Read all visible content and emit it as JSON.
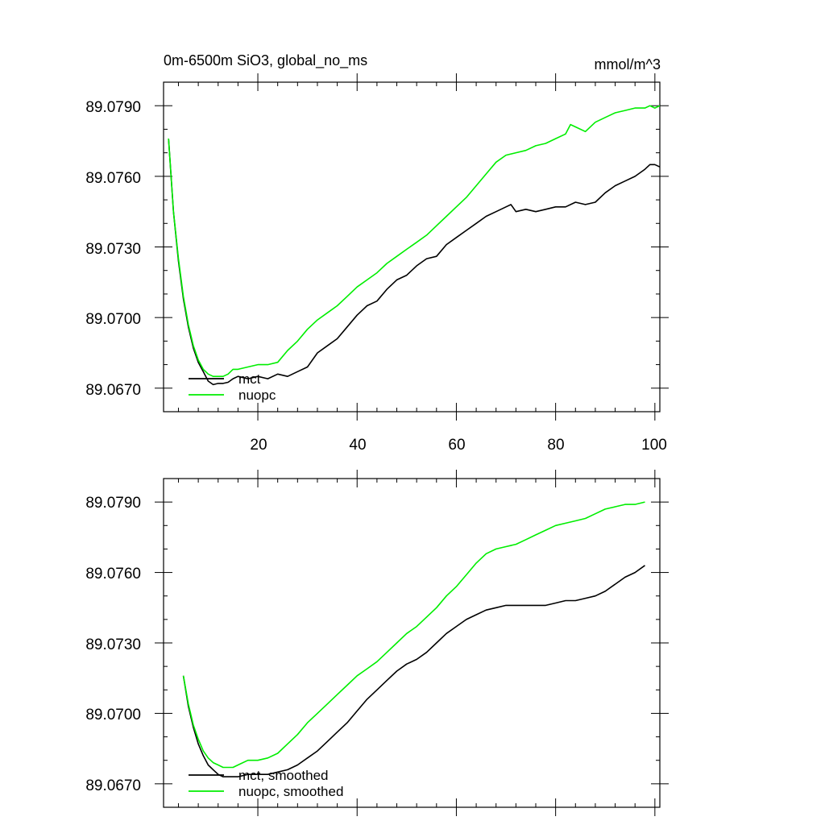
{
  "colors": {
    "mct": "#000000",
    "nuopc": "#00ee00",
    "frame": "#000000",
    "background": "#ffffff"
  },
  "chart_data": [
    {
      "type": "line",
      "title": "0m-6500m SiO3, global_no_ms",
      "units": "mmol/m^3",
      "xlim": [
        1,
        101
      ],
      "ylim": [
        89.066,
        89.08
      ],
      "x_ticks": [
        20,
        40,
        60,
        80,
        100
      ],
      "y_ticks": [
        89.067,
        89.07,
        89.073,
        89.076,
        89.079
      ],
      "x_tick_labels": [
        "20",
        "40",
        "60",
        "80",
        "100"
      ],
      "y_tick_labels": [
        "89.0670",
        "89.0700",
        "89.0730",
        "89.0760",
        "89.0790"
      ],
      "legend": [
        "mct",
        "nuopc"
      ],
      "legend_position": "bottom-left",
      "series": [
        {
          "name": "mct",
          "color": "#000000",
          "x": [
            2,
            3,
            4,
            5,
            6,
            7,
            8,
            9,
            10,
            11,
            12,
            13,
            14,
            15,
            16,
            18,
            20,
            22,
            24,
            26,
            28,
            30,
            32,
            34,
            36,
            38,
            40,
            42,
            44,
            46,
            48,
            50,
            52,
            54,
            56,
            58,
            60,
            62,
            64,
            66,
            68,
            70,
            71,
            72,
            74,
            76,
            78,
            80,
            82,
            84,
            86,
            88,
            90,
            92,
            94,
            96,
            98,
            99,
            100,
            101
          ],
          "values": [
            89.0776,
            89.0745,
            89.0724,
            89.0708,
            89.0696,
            89.0687,
            89.0681,
            89.0677,
            89.0673,
            89.06715,
            89.0672,
            89.0672,
            89.06725,
            89.0674,
            89.0675,
            89.0674,
            89.0675,
            89.0674,
            89.0676,
            89.0675,
            89.0677,
            89.0679,
            89.0685,
            89.0688,
            89.0691,
            89.0696,
            89.0701,
            89.0705,
            89.0707,
            89.0712,
            89.0716,
            89.0718,
            89.0722,
            89.0725,
            89.0726,
            89.0731,
            89.0734,
            89.0737,
            89.074,
            89.0743,
            89.0745,
            89.0747,
            89.0748,
            89.0745,
            89.0746,
            89.0745,
            89.0746,
            89.0747,
            89.0747,
            89.0749,
            89.0748,
            89.0749,
            89.0753,
            89.0756,
            89.0758,
            89.076,
            89.0763,
            89.0765,
            89.0765,
            89.0764
          ]
        },
        {
          "name": "nuopc",
          "color": "#00ee00",
          "x": [
            2,
            3,
            4,
            5,
            6,
            7,
            8,
            9,
            10,
            11,
            12,
            13,
            14,
            15,
            16,
            18,
            20,
            22,
            24,
            26,
            28,
            30,
            32,
            34,
            36,
            38,
            40,
            42,
            44,
            46,
            48,
            50,
            52,
            54,
            56,
            58,
            60,
            62,
            64,
            66,
            68,
            70,
            72,
            74,
            76,
            78,
            80,
            82,
            83,
            84,
            86,
            88,
            90,
            92,
            94,
            96,
            98,
            99,
            100,
            101
          ],
          "values": [
            89.0776,
            89.0745,
            89.0725,
            89.0709,
            89.0697,
            89.0688,
            89.0682,
            89.0678,
            89.0676,
            89.0675,
            89.0675,
            89.0675,
            89.0676,
            89.0678,
            89.0678,
            89.0679,
            89.068,
            89.068,
            89.0681,
            89.0686,
            89.069,
            89.0695,
            89.0699,
            89.0702,
            89.0705,
            89.0709,
            89.0713,
            89.0716,
            89.0719,
            89.0723,
            89.0726,
            89.0729,
            89.0732,
            89.0735,
            89.0739,
            89.0743,
            89.0747,
            89.0751,
            89.0756,
            89.0761,
            89.0766,
            89.0769,
            89.077,
            89.0771,
            89.0773,
            89.0774,
            89.0776,
            89.0778,
            89.0782,
            89.0781,
            89.0779,
            89.0783,
            89.0785,
            89.0787,
            89.0788,
            89.0789,
            89.0789,
            89.079,
            89.0789,
            89.079
          ]
        }
      ]
    },
    {
      "type": "line",
      "title": "",
      "xlim": [
        1,
        101
      ],
      "ylim": [
        89.066,
        89.08
      ],
      "x_ticks": [
        20,
        40,
        60,
        80,
        100
      ],
      "y_ticks": [
        89.067,
        89.07,
        89.073,
        89.076,
        89.079
      ],
      "y_tick_labels": [
        "89.0670",
        "89.0700",
        "89.0730",
        "89.0760",
        "89.0790"
      ],
      "legend": [
        "mct, smoothed",
        "nuopc, smoothed"
      ],
      "legend_position": "bottom-left",
      "series": [
        {
          "name": "mct, smoothed",
          "color": "#000000",
          "x": [
            5,
            6,
            7,
            8,
            9,
            10,
            11,
            12,
            13,
            14,
            15,
            16,
            18,
            20,
            22,
            24,
            26,
            28,
            30,
            32,
            34,
            36,
            38,
            40,
            42,
            44,
            46,
            48,
            50,
            52,
            54,
            56,
            58,
            60,
            62,
            64,
            66,
            68,
            70,
            72,
            74,
            76,
            78,
            80,
            82,
            84,
            86,
            88,
            90,
            92,
            94,
            96,
            98
          ],
          "values": [
            89.0716,
            89.0703,
            89.0694,
            89.0687,
            89.0682,
            89.0678,
            89.0676,
            89.0674,
            89.0673,
            89.0673,
            89.0673,
            89.0673,
            89.0674,
            89.0674,
            89.0674,
            89.0675,
            89.0676,
            89.0678,
            89.0681,
            89.0684,
            89.0688,
            89.0692,
            89.0696,
            89.0701,
            89.0706,
            89.071,
            89.0714,
            89.0718,
            89.0721,
            89.0723,
            89.0726,
            89.073,
            89.0734,
            89.0737,
            89.074,
            89.0742,
            89.0744,
            89.0745,
            89.0746,
            89.0746,
            89.0746,
            89.0746,
            89.0746,
            89.0747,
            89.0748,
            89.0748,
            89.0749,
            89.075,
            89.0752,
            89.0755,
            89.0758,
            89.076,
            89.0763
          ]
        },
        {
          "name": "nuopc, smoothed",
          "color": "#00ee00",
          "x": [
            5,
            6,
            7,
            8,
            9,
            10,
            11,
            12,
            13,
            14,
            15,
            16,
            18,
            20,
            22,
            24,
            26,
            28,
            30,
            32,
            34,
            36,
            38,
            40,
            42,
            44,
            46,
            48,
            50,
            52,
            54,
            56,
            58,
            60,
            62,
            64,
            66,
            68,
            70,
            72,
            74,
            76,
            78,
            80,
            82,
            84,
            86,
            88,
            90,
            92,
            94,
            96,
            98
          ],
          "values": [
            89.0716,
            89.0704,
            89.0695,
            89.0689,
            89.0684,
            89.0681,
            89.0679,
            89.0678,
            89.0677,
            89.0677,
            89.0677,
            89.0678,
            89.068,
            89.068,
            89.0681,
            89.0683,
            89.0687,
            89.0691,
            89.0696,
            89.07,
            89.0704,
            89.0708,
            89.0712,
            89.0716,
            89.0719,
            89.0722,
            89.0726,
            89.073,
            89.0734,
            89.0737,
            89.0741,
            89.0745,
            89.075,
            89.0754,
            89.0759,
            89.0764,
            89.0768,
            89.077,
            89.0771,
            89.0772,
            89.0774,
            89.0776,
            89.0778,
            89.078,
            89.0781,
            89.0782,
            89.0783,
            89.0785,
            89.0787,
            89.0788,
            89.0789,
            89.0789,
            89.079
          ]
        }
      ]
    }
  ]
}
